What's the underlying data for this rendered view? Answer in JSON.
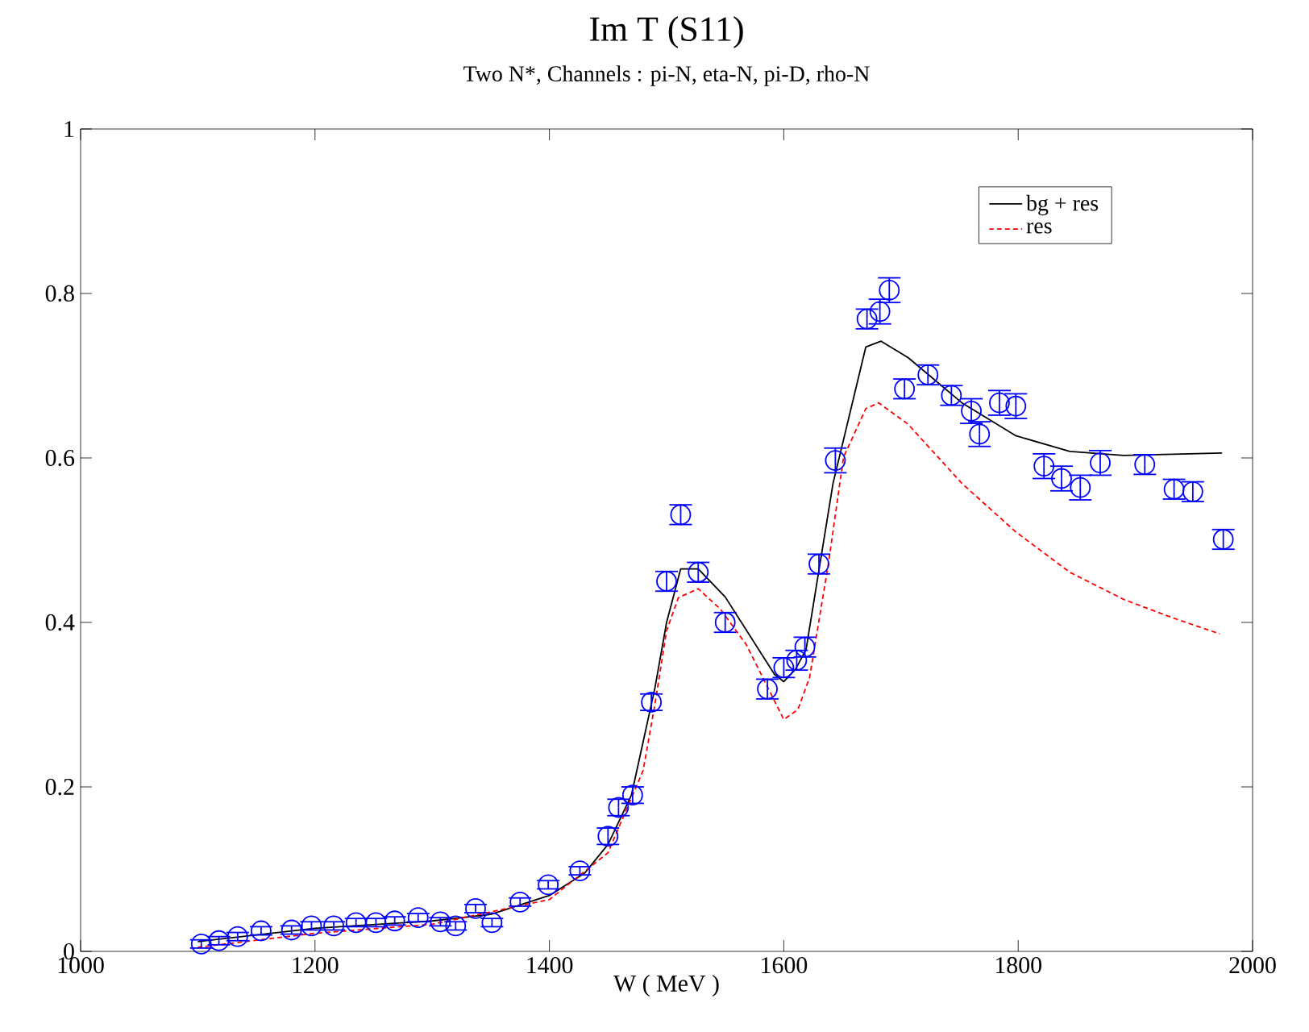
{
  "chart_data": {
    "type": "line",
    "title": "Im T (S11)",
    "subtitle": "Two N*, Channels : pi-N, eta-N, pi-D, rho-N",
    "xlabel": "W ( MeV )",
    "xlim": [
      1000,
      2000
    ],
    "ylim": [
      0,
      1
    ],
    "xticks": [
      1000,
      1200,
      1400,
      1600,
      1800,
      2000
    ],
    "yticks": [
      0,
      0.2,
      0.4,
      0.6,
      0.8,
      1
    ],
    "grid": false,
    "legend": "top right",
    "series": [
      {
        "name": "bg + res",
        "color": "#000000",
        "line_style": "solid",
        "marker": "none",
        "x": [
          1100,
          1200,
          1300,
          1350,
          1400,
          1430,
          1450,
          1470,
          1490,
          1500,
          1512,
          1527,
          1550,
          1592,
          1600,
          1610,
          1619,
          1642,
          1670,
          1683,
          1706,
          1752,
          1798,
          1844,
          1890,
          1974
        ],
        "values": [
          0.012,
          0.028,
          0.037,
          0.045,
          0.068,
          0.095,
          0.13,
          0.19,
          0.32,
          0.4,
          0.465,
          0.465,
          0.431,
          0.337,
          0.328,
          0.343,
          0.367,
          0.569,
          0.735,
          0.742,
          0.722,
          0.667,
          0.627,
          0.608,
          0.603,
          0.606
        ]
      },
      {
        "name": "res",
        "color": "#ff0000",
        "line_style": "dashed",
        "marker": "none",
        "x": [
          1100,
          1200,
          1300,
          1400,
          1450,
          1480,
          1490,
          1500,
          1510,
          1527,
          1546,
          1568,
          1600,
          1612,
          1622,
          1638,
          1651,
          1670,
          1681,
          1706,
          1752,
          1798,
          1844,
          1890,
          1931,
          1972
        ],
        "values": [
          0.005,
          0.022,
          0.033,
          0.063,
          0.12,
          0.22,
          0.3,
          0.39,
          0.43,
          0.441,
          0.416,
          0.373,
          0.282,
          0.294,
          0.333,
          0.471,
          0.601,
          0.66,
          0.667,
          0.641,
          0.569,
          0.51,
          0.461,
          0.428,
          0.406,
          0.386
        ]
      },
      {
        "type": "scatter",
        "color": "#0000ff",
        "marker": "circle",
        "x": [
          1103,
          1118,
          1134,
          1154,
          1180,
          1197,
          1216,
          1235,
          1252,
          1268,
          1288,
          1307,
          1320,
          1337,
          1351,
          1375,
          1399,
          1426,
          1450,
          1459,
          1471,
          1487,
          1500,
          1512,
          1527,
          1550,
          1586,
          1600,
          1611,
          1618,
          1630,
          1644,
          1671,
          1682,
          1690,
          1703,
          1723,
          1743,
          1760,
          1767,
          1784,
          1798,
          1822,
          1837,
          1853,
          1870,
          1908,
          1933,
          1949,
          1975
        ],
        "values": [
          0.009,
          0.013,
          0.018,
          0.025,
          0.026,
          0.031,
          0.031,
          0.035,
          0.035,
          0.037,
          0.041,
          0.036,
          0.031,
          0.052,
          0.035,
          0.06,
          0.081,
          0.098,
          0.14,
          0.175,
          0.19,
          0.303,
          0.45,
          0.531,
          0.461,
          0.4,
          0.319,
          0.345,
          0.354,
          0.37,
          0.471,
          0.597,
          0.769,
          0.778,
          0.804,
          0.684,
          0.701,
          0.676,
          0.657,
          0.629,
          0.667,
          0.663,
          0.59,
          0.575,
          0.564,
          0.594,
          0.592,
          0.562,
          0.559,
          0.501
        ],
        "errors": [
          0.005,
          0.005,
          0.005,
          0.005,
          0.005,
          0.005,
          0.005,
          0.005,
          0.005,
          0.005,
          0.005,
          0.005,
          0.005,
          0.005,
          0.005,
          0.005,
          0.005,
          0.005,
          0.01,
          0.01,
          0.01,
          0.01,
          0.012,
          0.012,
          0.012,
          0.012,
          0.012,
          0.012,
          0.012,
          0.012,
          0.012,
          0.015,
          0.012,
          0.015,
          0.015,
          0.012,
          0.012,
          0.012,
          0.015,
          0.015,
          0.015,
          0.015,
          0.015,
          0.015,
          0.015,
          0.015,
          0.012,
          0.012,
          0.012,
          0.012
        ]
      }
    ]
  }
}
